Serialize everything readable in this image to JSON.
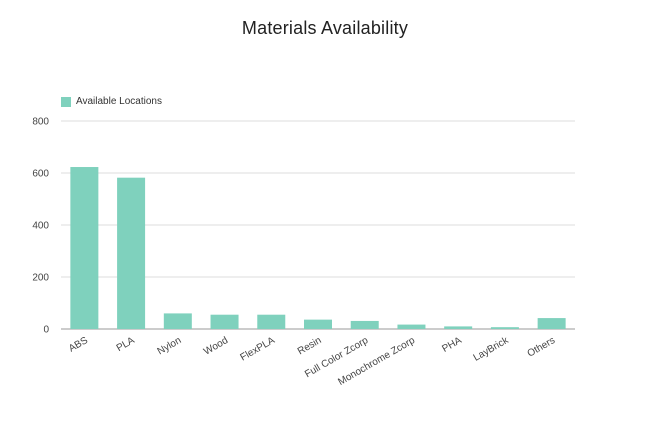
{
  "chart_data": {
    "type": "bar",
    "title": "Materials Availability",
    "xlabel": "",
    "ylabel": "",
    "ylim": [
      0,
      800
    ],
    "yticks": [
      0,
      200,
      400,
      600,
      800
    ],
    "grid": true,
    "legend_position": "top-left",
    "categories": [
      "ABS",
      "PLA",
      "Nylon",
      "Wood",
      "FlexPLA",
      "Resin",
      "Full Color Zcorp",
      "Monochrome Zcorp",
      "PHA",
      "LayBrick",
      "Others"
    ],
    "series": [
      {
        "name": "Available Locations",
        "color": "#7fd1bd",
        "values": [
          623,
          582,
          60,
          55,
          55,
          36,
          31,
          17,
          10,
          7,
          42
        ]
      }
    ]
  }
}
